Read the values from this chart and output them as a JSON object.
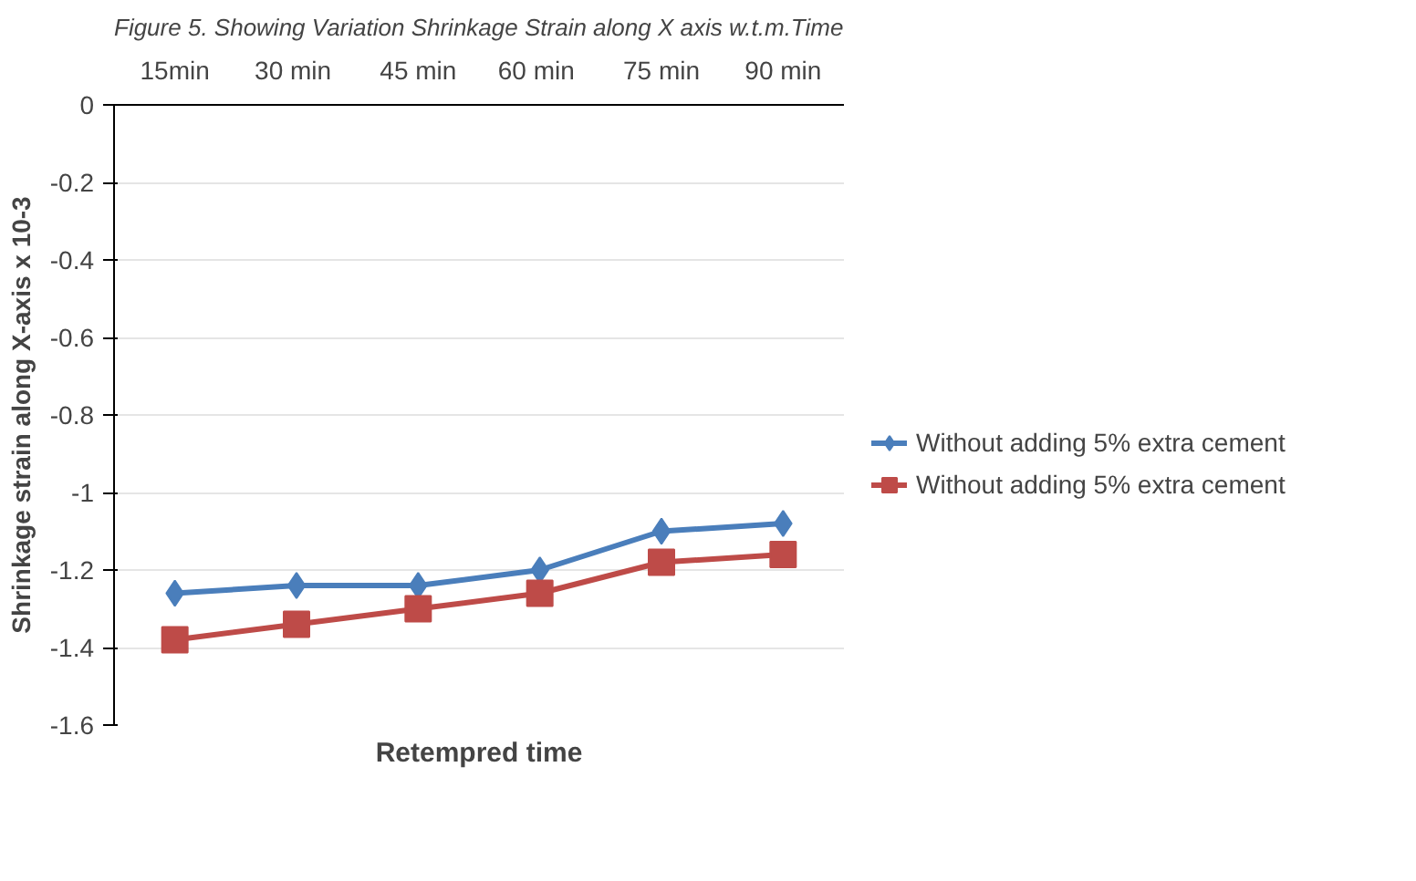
{
  "chart_data": {
    "type": "line",
    "title": "Figure 5. Showing Variation Shrinkage Strain along X axis w.t.m.Time",
    "xlabel": "Retempred time",
    "ylabel": "Shrinkage strain along X-axis x 10-3",
    "categories": [
      "15min",
      "30  min",
      "45 min",
      "60  min",
      "75 min",
      "90 min"
    ],
    "series": [
      {
        "name": "Without adding 5% extra cement",
        "color": "#4a7ebb",
        "marker": "diamond",
        "values": [
          -1.26,
          -1.24,
          -1.24,
          -1.2,
          -1.1,
          -1.08
        ]
      },
      {
        "name": "Without adding 5% extra cement",
        "color": "#be4b48",
        "marker": "square",
        "values": [
          -1.38,
          -1.34,
          -1.3,
          -1.26,
          -1.18,
          -1.16
        ]
      }
    ],
    "ylim": [
      -1.6,
      0
    ],
    "yticks": [
      {
        "value": 0,
        "label": "0"
      },
      {
        "value": -0.2,
        "label": "-0.2"
      },
      {
        "value": -0.4,
        "label": "-0.4"
      },
      {
        "value": -0.6,
        "label": "-0.6"
      },
      {
        "value": -0.8,
        "label": "-0.8"
      },
      {
        "value": -1,
        "label": "-1"
      },
      {
        "value": -1.2,
        "label": "-1.2"
      },
      {
        "value": -1.4,
        "label": "-1.4"
      },
      {
        "value": -1.6,
        "label": "-1.6"
      }
    ],
    "grid": "y",
    "legend": "right"
  }
}
